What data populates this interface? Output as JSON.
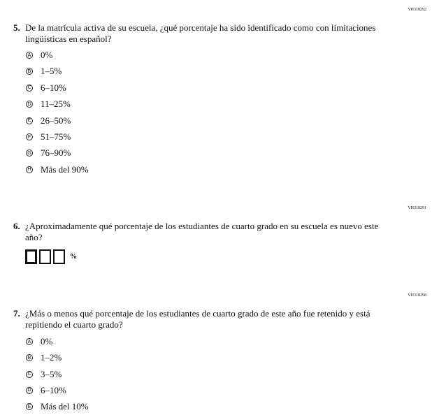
{
  "questions": [
    {
      "id": "VH318292",
      "number": "5.",
      "text": "De la matrícula activa de su escuela, ¿qué porcentaje ha sido identificado como con limitaciones lingüísticas en español?",
      "options": [
        {
          "letter": "A",
          "label": "0%"
        },
        {
          "letter": "B",
          "label": "1–5%"
        },
        {
          "letter": "C",
          "label": "6–10%"
        },
        {
          "letter": "D",
          "label": "11–25%"
        },
        {
          "letter": "E",
          "label": "26–50%"
        },
        {
          "letter": "F",
          "label": "51–75%"
        },
        {
          "letter": "G",
          "label": "76–90%"
        },
        {
          "letter": "H",
          "label": "Más del 90%"
        }
      ]
    },
    {
      "id": "VH318291",
      "number": "6.",
      "text": "¿Aproximadamente qué porcentaje de los estudiantes de cuarto grado en su escuela es nuevo este año?",
      "unit": "%"
    },
    {
      "id": "VH318298",
      "number": "7.",
      "text": "¿Más o menos qué porcentaje de los estudiantes de cuarto grado de este año fue retenido y está repitiendo el cuarto grado?",
      "options": [
        {
          "letter": "A",
          "label": "0%"
        },
        {
          "letter": "B",
          "label": "1–2%"
        },
        {
          "letter": "C",
          "label": "3–5%"
        },
        {
          "letter": "D",
          "label": "6–10%"
        },
        {
          "letter": "E",
          "label": "Más del 10%"
        }
      ]
    }
  ]
}
